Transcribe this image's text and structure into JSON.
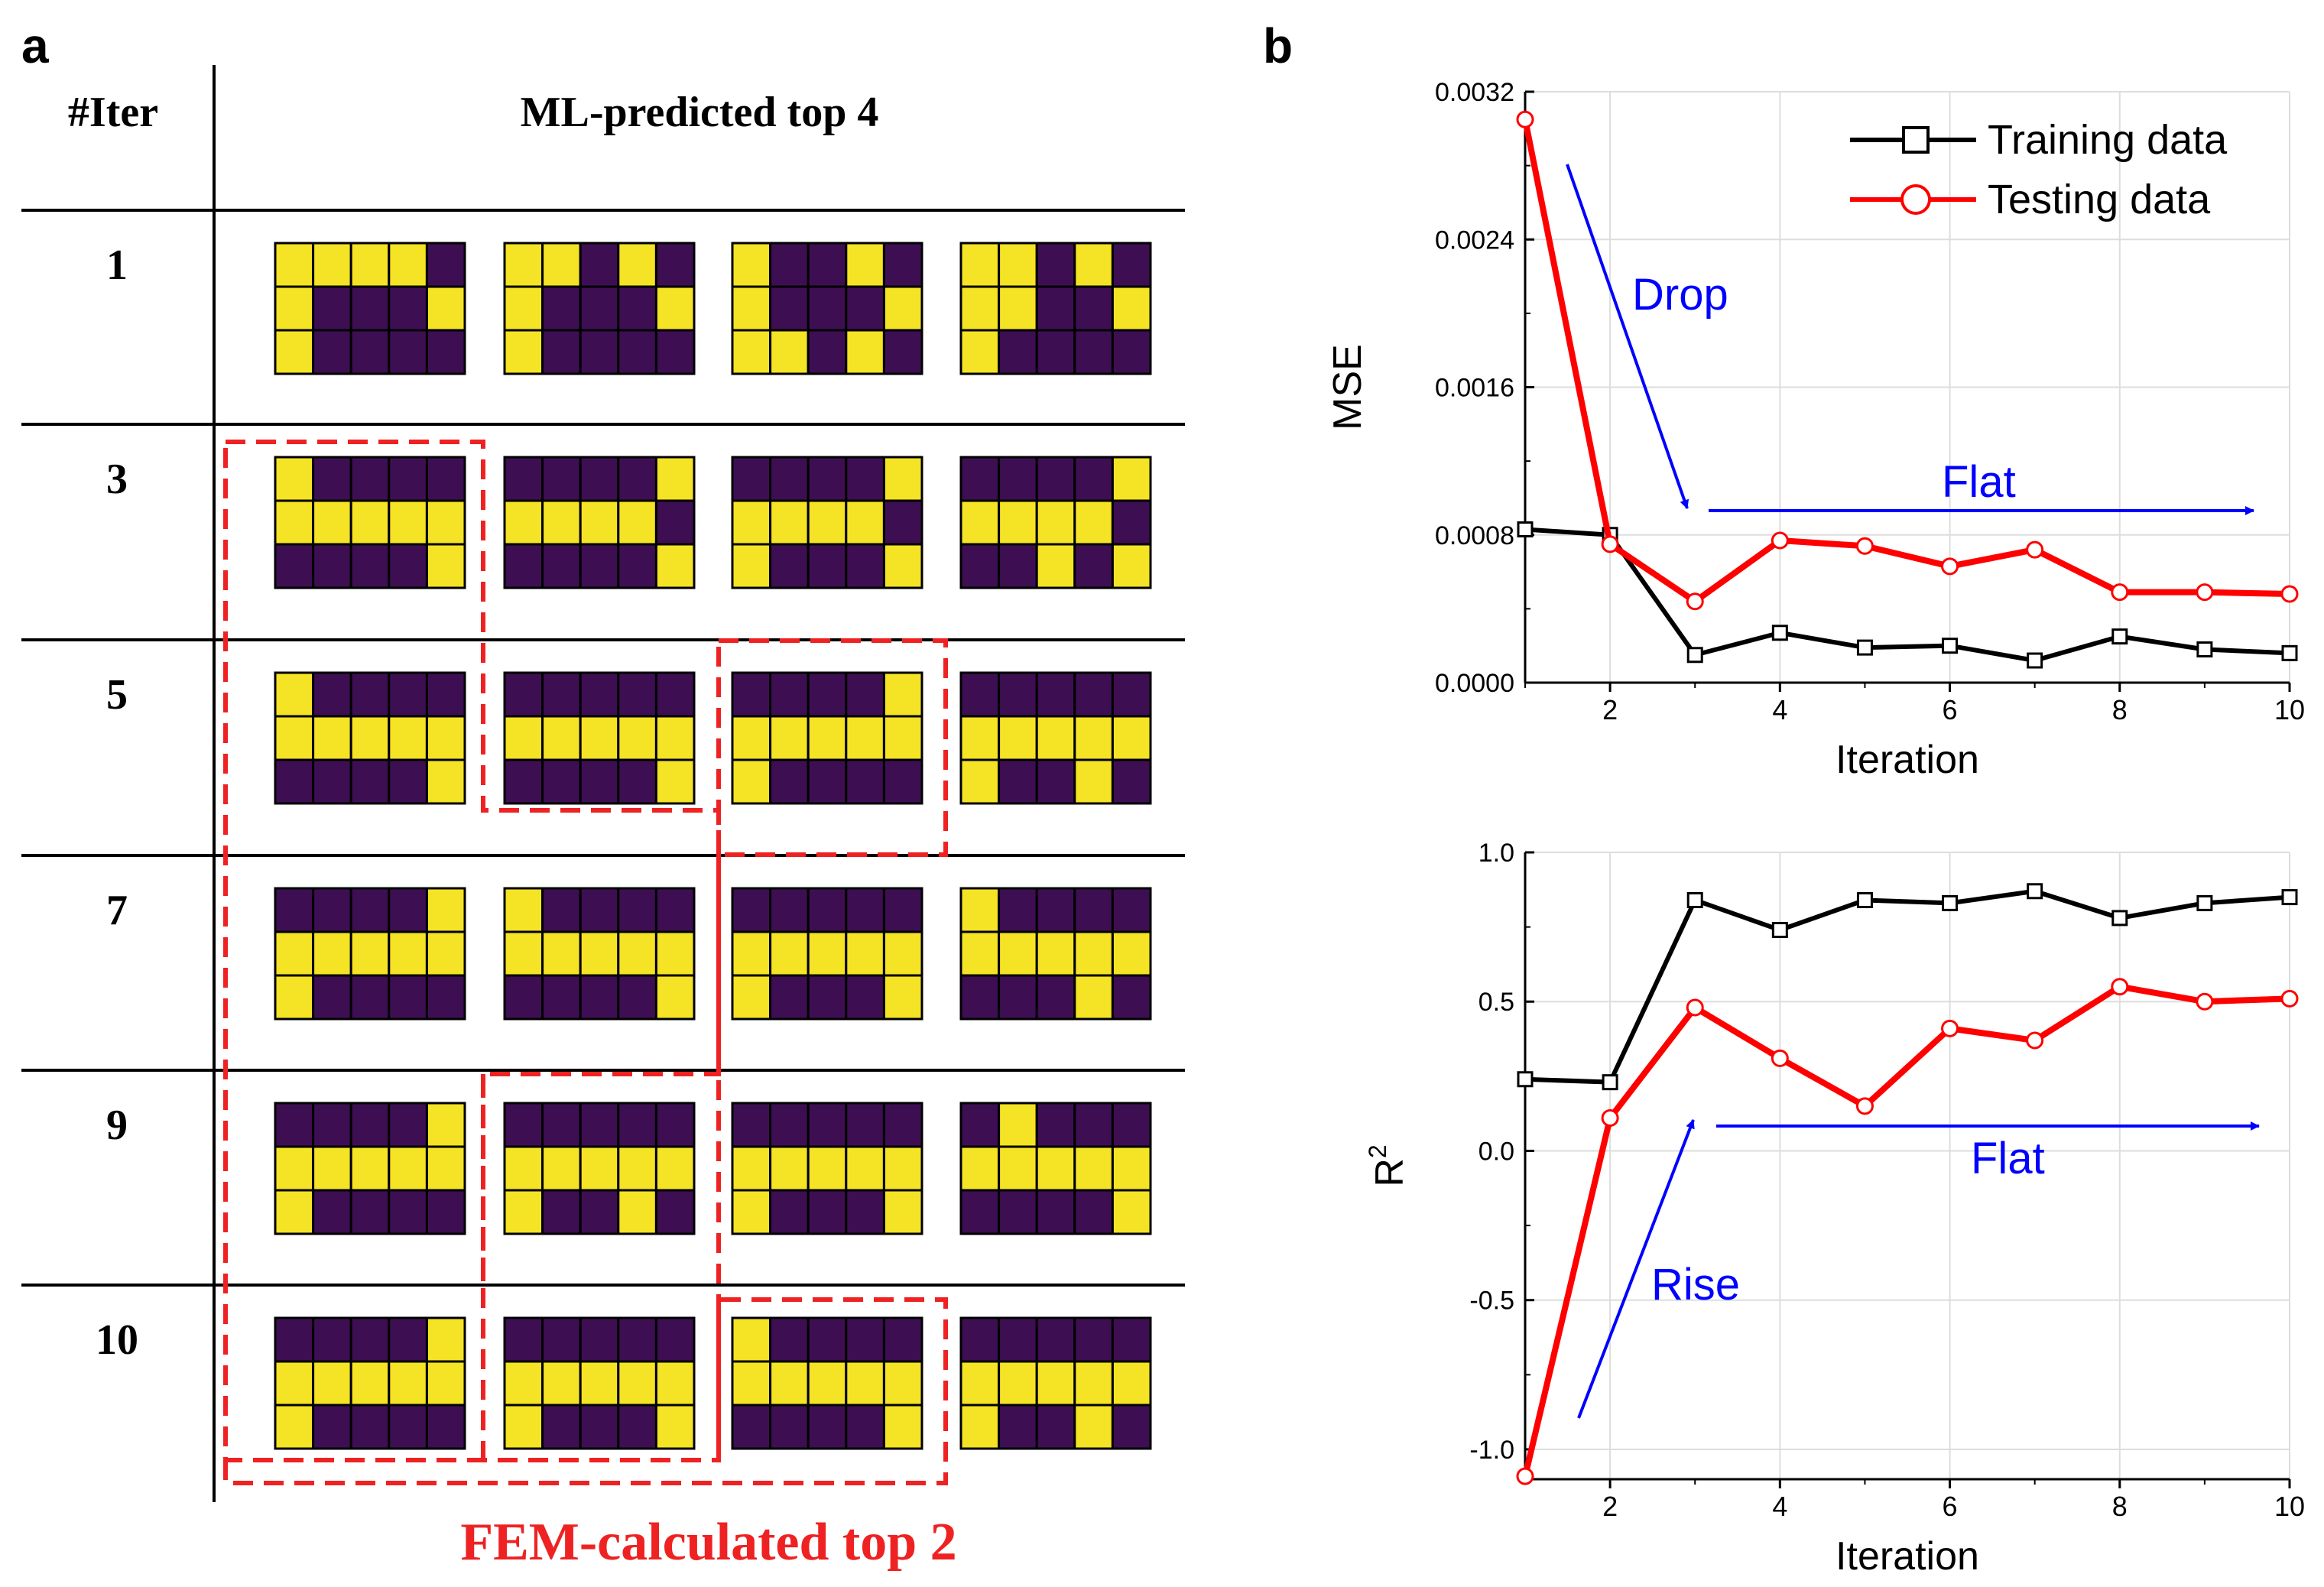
{
  "panel_a": {
    "label": "a",
    "col_header_iter": "#Iter",
    "col_header_top": "ML-predicted top 4",
    "footer": "FEM-calculated top 2",
    "colors": {
      "filled": "#f5e325",
      "empty": "#3d0f52",
      "grid": "#000000",
      "dash": "#ee2222"
    },
    "rows": [
      {
        "iter": "1",
        "patterns": [
          [
            [
              1,
              1,
              1,
              1,
              0
            ],
            [
              1,
              0,
              0,
              0,
              1
            ],
            [
              1,
              0,
              0,
              0,
              0
            ]
          ],
          [
            [
              1,
              1,
              0,
              1,
              0
            ],
            [
              1,
              0,
              0,
              0,
              1
            ],
            [
              1,
              0,
              0,
              0,
              0
            ]
          ],
          [
            [
              1,
              0,
              0,
              1,
              0
            ],
            [
              1,
              0,
              0,
              0,
              1
            ],
            [
              1,
              1,
              0,
              1,
              0
            ]
          ],
          [
            [
              1,
              1,
              0,
              1,
              0
            ],
            [
              1,
              1,
              0,
              0,
              1
            ],
            [
              1,
              0,
              0,
              0,
              0
            ]
          ]
        ]
      },
      {
        "iter": "3",
        "patterns": [
          [
            [
              1,
              0,
              0,
              0,
              0
            ],
            [
              1,
              1,
              1,
              1,
              1
            ],
            [
              0,
              0,
              0,
              0,
              1
            ]
          ],
          [
            [
              0,
              0,
              0,
              0,
              1
            ],
            [
              1,
              1,
              1,
              1,
              0
            ],
            [
              0,
              0,
              0,
              0,
              1
            ]
          ],
          [
            [
              0,
              0,
              0,
              0,
              1
            ],
            [
              1,
              1,
              1,
              1,
              0
            ],
            [
              1,
              0,
              0,
              0,
              1
            ]
          ],
          [
            [
              0,
              0,
              0,
              0,
              1
            ],
            [
              1,
              1,
              1,
              1,
              0
            ],
            [
              0,
              0,
              1,
              0,
              1
            ]
          ]
        ]
      },
      {
        "iter": "5",
        "patterns": [
          [
            [
              1,
              0,
              0,
              0,
              0
            ],
            [
              1,
              1,
              1,
              1,
              1
            ],
            [
              0,
              0,
              0,
              0,
              1
            ]
          ],
          [
            [
              0,
              0,
              0,
              0,
              0
            ],
            [
              1,
              1,
              1,
              1,
              1
            ],
            [
              0,
              0,
              0,
              0,
              1
            ]
          ],
          [
            [
              0,
              0,
              0,
              0,
              1
            ],
            [
              1,
              1,
              1,
              1,
              1
            ],
            [
              1,
              0,
              0,
              0,
              0
            ]
          ],
          [
            [
              0,
              0,
              0,
              0,
              0
            ],
            [
              1,
              1,
              1,
              1,
              1
            ],
            [
              1,
              0,
              0,
              1,
              0
            ]
          ]
        ]
      },
      {
        "iter": "7",
        "patterns": [
          [
            [
              0,
              0,
              0,
              0,
              1
            ],
            [
              1,
              1,
              1,
              1,
              1
            ],
            [
              1,
              0,
              0,
              0,
              0
            ]
          ],
          [
            [
              1,
              0,
              0,
              0,
              0
            ],
            [
              1,
              1,
              1,
              1,
              1
            ],
            [
              0,
              0,
              0,
              0,
              1
            ]
          ],
          [
            [
              0,
              0,
              0,
              0,
              0
            ],
            [
              1,
              1,
              1,
              1,
              1
            ],
            [
              1,
              0,
              0,
              0,
              1
            ]
          ],
          [
            [
              1,
              0,
              0,
              0,
              0
            ],
            [
              1,
              1,
              1,
              1,
              1
            ],
            [
              0,
              0,
              0,
              1,
              0
            ]
          ]
        ]
      },
      {
        "iter": "9",
        "patterns": [
          [
            [
              0,
              0,
              0,
              0,
              1
            ],
            [
              1,
              1,
              1,
              1,
              1
            ],
            [
              1,
              0,
              0,
              0,
              0
            ]
          ],
          [
            [
              0,
              0,
              0,
              0,
              0
            ],
            [
              1,
              1,
              1,
              1,
              1
            ],
            [
              1,
              0,
              0,
              1,
              0
            ]
          ],
          [
            [
              0,
              0,
              0,
              0,
              0
            ],
            [
              1,
              1,
              1,
              1,
              1
            ],
            [
              1,
              0,
              0,
              0,
              1
            ]
          ],
          [
            [
              0,
              1,
              0,
              0,
              0
            ],
            [
              1,
              1,
              1,
              1,
              1
            ],
            [
              0,
              0,
              0,
              0,
              1
            ]
          ]
        ]
      },
      {
        "iter": "10",
        "patterns": [
          [
            [
              0,
              0,
              0,
              0,
              1
            ],
            [
              1,
              1,
              1,
              1,
              1
            ],
            [
              1,
              0,
              0,
              0,
              0
            ]
          ],
          [
            [
              0,
              0,
              0,
              0,
              0
            ],
            [
              1,
              1,
              1,
              1,
              1
            ],
            [
              1,
              0,
              0,
              0,
              1
            ]
          ],
          [
            [
              1,
              0,
              0,
              0,
              0
            ],
            [
              1,
              1,
              1,
              1,
              1
            ],
            [
              0,
              0,
              0,
              0,
              1
            ]
          ],
          [
            [
              0,
              0,
              0,
              0,
              0
            ],
            [
              1,
              1,
              1,
              1,
              1
            ],
            [
              1,
              0,
              0,
              1,
              0
            ]
          ]
        ]
      }
    ]
  },
  "panel_b": {
    "label": "b"
  },
  "chart_data": [
    {
      "type": "line",
      "xlabel": "Iteration",
      "ylabel": "MSE",
      "xlim": [
        1,
        10
      ],
      "ylim": [
        0,
        0.0032
      ],
      "xticks": [
        "2",
        "4",
        "6",
        "8",
        "10"
      ],
      "yticks": [
        "0.0000",
        "0.0008",
        "0.0016",
        "0.0024",
        "0.0032"
      ],
      "grid": true,
      "legend_position": "top-right",
      "x": [
        1,
        2,
        3,
        4,
        5,
        6,
        7,
        8,
        9,
        10
      ],
      "series": [
        {
          "name": "Training data",
          "color": "#000000",
          "marker": "square",
          "values": [
            0.00083,
            0.0008,
            0.00015,
            0.00027,
            0.00019,
            0.0002,
            0.00012,
            0.00025,
            0.00018,
            0.00016
          ]
        },
        {
          "name": "Testing data",
          "color": "#ff0000",
          "marker": "circle",
          "values": [
            0.00305,
            0.00075,
            0.00044,
            0.00077,
            0.00074,
            0.00063,
            0.00072,
            0.00049,
            0.00049,
            0.00048
          ]
        }
      ],
      "annotations": [
        {
          "text": "Drop",
          "color": "#0000ff"
        },
        {
          "text": "Flat",
          "color": "#0000ff"
        }
      ]
    },
    {
      "type": "line",
      "xlabel": "Iteration",
      "ylabel": "R2",
      "xlim": [
        1,
        10
      ],
      "ylim": [
        -1.1,
        1.0
      ],
      "xticks": [
        "2",
        "4",
        "6",
        "8",
        "10"
      ],
      "yticks": [
        "1.0",
        "0.5",
        "0.0",
        "-0.5",
        "-1.0"
      ],
      "grid": true,
      "x": [
        1,
        2,
        3,
        4,
        5,
        6,
        7,
        8,
        9,
        10
      ],
      "series": [
        {
          "name": "Training data",
          "color": "#000000",
          "marker": "square",
          "values": [
            0.24,
            0.23,
            0.84,
            0.74,
            0.84,
            0.83,
            0.87,
            0.78,
            0.83,
            0.85
          ]
        },
        {
          "name": "Testing data",
          "color": "#ff0000",
          "marker": "circle",
          "values": [
            -1.09,
            0.11,
            0.48,
            0.31,
            0.15,
            0.41,
            0.37,
            0.55,
            0.5,
            0.51
          ]
        }
      ],
      "annotations": [
        {
          "text": "Rise",
          "color": "#0000ff"
        },
        {
          "text": "Flat",
          "color": "#0000ff"
        }
      ]
    }
  ]
}
